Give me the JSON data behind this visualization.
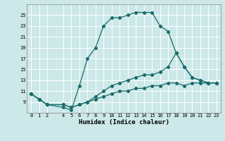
{
  "xlabel": "Humidex (Indice chaleur)",
  "bg_color": "#cce8e8",
  "line_color": "#1a6b6b",
  "grid_color": "#ffffff",
  "xlim": [
    -0.5,
    23.5
  ],
  "ylim": [
    7,
    27
  ],
  "xticks": [
    0,
    1,
    2,
    4,
    5,
    6,
    7,
    8,
    9,
    10,
    11,
    12,
    13,
    14,
    15,
    16,
    17,
    18,
    19,
    20,
    21,
    22,
    23
  ],
  "yticks": [
    9,
    11,
    13,
    15,
    17,
    19,
    21,
    23,
    25
  ],
  "line1_x": [
    0,
    1,
    2,
    4,
    5,
    6,
    7,
    8,
    9,
    10,
    11,
    12,
    13,
    14,
    15,
    16,
    17,
    18,
    19,
    20,
    21,
    22,
    23
  ],
  "line1_y": [
    10.5,
    9.5,
    8.5,
    8.0,
    7.5,
    12.0,
    17.0,
    19.0,
    23.0,
    24.5,
    24.5,
    25.0,
    25.5,
    25.5,
    25.5,
    23.0,
    22.0,
    18.0,
    15.5,
    13.5,
    13.0,
    12.5,
    12.5
  ],
  "line2_x": [
    0,
    1,
    2,
    4,
    5,
    6,
    7,
    8,
    9,
    10,
    11,
    12,
    13,
    14,
    15,
    16,
    17,
    18,
    19,
    20,
    21,
    22,
    23
  ],
  "line2_y": [
    10.5,
    9.5,
    8.5,
    8.5,
    8.0,
    8.5,
    9.0,
    10.0,
    11.0,
    12.0,
    12.5,
    13.0,
    13.5,
    14.0,
    14.0,
    14.5,
    15.5,
    18.0,
    15.5,
    13.5,
    13.0,
    12.5,
    12.5
  ],
  "line3_x": [
    0,
    1,
    2,
    4,
    5,
    6,
    7,
    8,
    9,
    10,
    11,
    12,
    13,
    14,
    15,
    16,
    17,
    18,
    19,
    20,
    21,
    22,
    23
  ],
  "line3_y": [
    10.5,
    9.5,
    8.5,
    8.5,
    8.0,
    8.5,
    9.0,
    9.5,
    10.0,
    10.5,
    11.0,
    11.0,
    11.5,
    11.5,
    12.0,
    12.0,
    12.5,
    12.5,
    12.0,
    12.5,
    12.5,
    12.5,
    12.5
  ],
  "xlabel_fontsize": 6.5,
  "tick_fontsize": 5
}
